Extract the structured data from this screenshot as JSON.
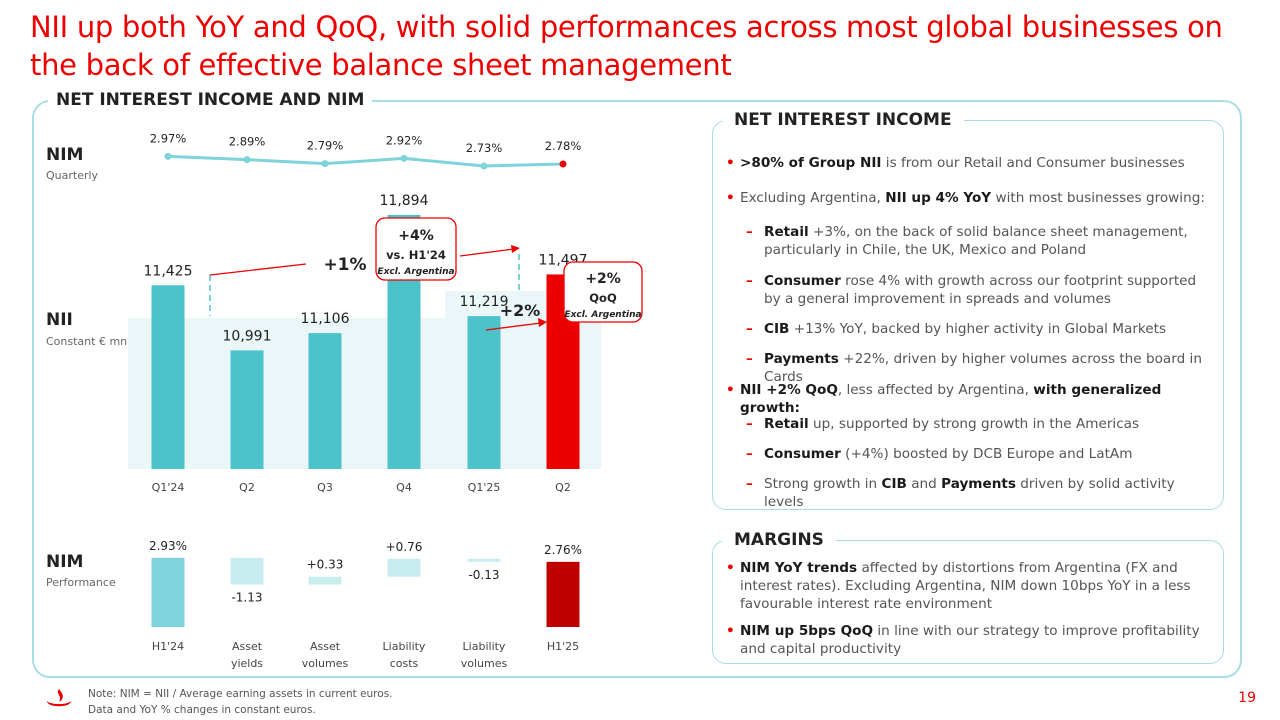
{
  "title": "NII up both YoY and QoQ, with solid performances across most global businesses on the back of effective balance sheet management",
  "left_panel_title": "NET INTEREST INCOME AND NIM",
  "nim_q": {
    "label": "NIM",
    "sub": "Quarterly"
  },
  "nii": {
    "label": "NII",
    "sub": "Constant € mn"
  },
  "nim_p": {
    "label": "NIM",
    "sub": "Performance"
  },
  "annotations": {
    "yoy_pct": "+1%",
    "yoy_excl_pct": "+4%",
    "yoy_excl_vs": "vs. H1'24",
    "yoy_excl_note": "Excl. Argentina",
    "qoq_pct": "+2%",
    "qoq_excl_pct": "+2%",
    "qoq_excl_vs": "QoQ",
    "qoq_excl_note": "Excl. Argentina"
  },
  "colors": {
    "accent": "#ec0000",
    "teal": "#4cc3cb",
    "light_teal": "#c9ecef",
    "nim_line": "#7fd3da",
    "highlight_bg": "#eaf6f8"
  },
  "chart_data": [
    {
      "type": "line",
      "title": "NIM Quarterly",
      "categories": [
        "Q1'24",
        "Q2",
        "Q3",
        "Q4",
        "Q1'25",
        "Q2"
      ],
      "values": [
        2.97,
        2.89,
        2.79,
        2.92,
        2.73,
        2.78
      ],
      "labels": [
        "2.97%",
        "2.89%",
        "2.79%",
        "2.92%",
        "2.73%",
        "2.78%"
      ]
    },
    {
      "type": "bar",
      "title": "NII",
      "categories": [
        "Q1'24",
        "Q2",
        "Q3",
        "Q4",
        "Q1'25",
        "Q2"
      ],
      "values": [
        11425,
        10991,
        11106,
        11894,
        11219,
        11497
      ],
      "labels": [
        "11,425",
        "10,991",
        "11,106",
        "11,894",
        "11,219",
        "11,497"
      ]
    },
    {
      "type": "bar",
      "title": "NIM Performance",
      "categories": [
        "H1'24",
        "Asset yields",
        "Asset volumes",
        "Liability costs",
        "Liability volumes",
        "H1'25"
      ],
      "category_lines": [
        [
          "H1'24"
        ],
        [
          "Asset",
          "yields"
        ],
        [
          "Asset",
          "volumes"
        ],
        [
          "Liability",
          "costs"
        ],
        [
          "Liability",
          "volumes"
        ],
        [
          "H1'25"
        ]
      ],
      "values": [
        2.93,
        -1.13,
        0.33,
        0.76,
        -0.13,
        2.76
      ],
      "labels": [
        "2.93%",
        "-1.13",
        "+0.33",
        "+0.76",
        "-0.13",
        "2.76%"
      ],
      "kind": [
        "total",
        "delta",
        "delta",
        "delta",
        "delta",
        "total"
      ]
    }
  ],
  "nii_box": {
    "title": "NET INTEREST INCOME",
    "bullets": [
      {
        "level": 1,
        "marker": "•",
        "html": "<b>&gt;80% of Group NII</b> is from our Retail and Consumer businesses"
      },
      {
        "level": 1,
        "marker": "•",
        "html": "Excluding Argentina, <b>NII up 4% YoY</b> with most businesses growing:"
      },
      {
        "level": 2,
        "marker": "–",
        "html": "<b>Retail</b> +3%, on the back of solid balance sheet management, particularly in Chile, the UK, Mexico and Poland"
      },
      {
        "level": 2,
        "marker": "–",
        "html": "<b>Consumer</b> rose 4% with growth across our footprint supported by a general improvement in spreads and volumes"
      },
      {
        "level": 2,
        "marker": "–",
        "html": "<b>CIB</b> +13% YoY, backed by higher activity in Global Markets"
      },
      {
        "level": 2,
        "marker": "–",
        "html": "<b>Payments</b> +22%, driven by higher volumes across the board in Cards"
      },
      {
        "level": 1,
        "marker": "•",
        "html": "<b>NII +2% QoQ</b>, less affected by Argentina, <b>with generalized growth:</b>"
      },
      {
        "level": 2,
        "marker": "–",
        "html": "<b>Retail</b> up, supported by strong growth in the Americas"
      },
      {
        "level": 2,
        "marker": "–",
        "html": "<b>Consumer</b> (+4%) boosted by DCB Europe and LatAm"
      },
      {
        "level": 2,
        "marker": "–",
        "html": "Strong growth in <b>CIB</b> and <b>Payments</b> driven by solid activity levels"
      }
    ]
  },
  "margins_box": {
    "title": "MARGINS",
    "bullets": [
      {
        "level": 1,
        "marker": "•",
        "html": "<b>NIM YoY trends</b> affected by distortions from Argentina (FX and interest rates). Excluding Argentina, NIM down 10bps YoY in a less favourable interest rate environment"
      },
      {
        "level": 1,
        "marker": "•",
        "html": "<b>NIM up 5bps QoQ</b> in line with our strategy to improve profitability and capital productivity"
      }
    ]
  },
  "footer": {
    "note_line1": "Note: NIM = NII / Average earning assets in current euros.",
    "note_line2": "Data and YoY % changes in constant euros.",
    "page": "19"
  },
  "logo_icon": "santander-flame-icon"
}
